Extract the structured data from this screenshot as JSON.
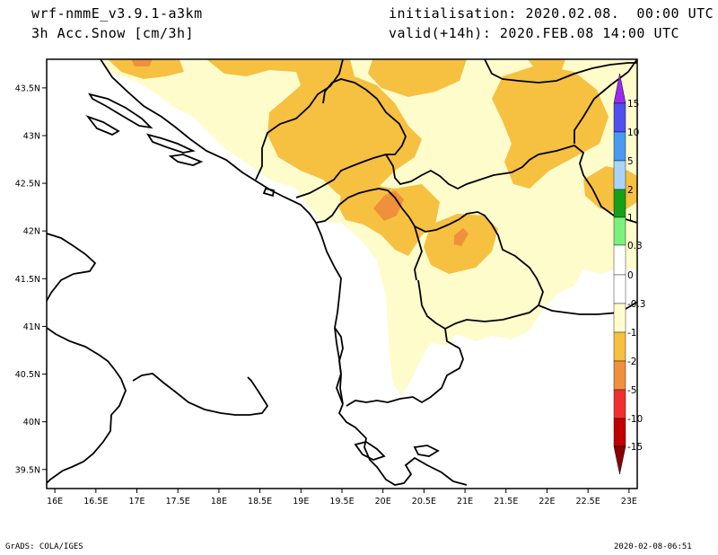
{
  "header": {
    "model": "wrf-nmmE_v3.9.1-a3km",
    "field": "3h Acc.Snow [cm/3h]",
    "init": "initialisation: 2020.02.08.  00:00 UTC",
    "valid": "valid(+14h): 2020.FEB.08 14:00 UTC"
  },
  "footer": {
    "credit": "GrADS: COLA/IGES",
    "timestamp": "2020-02-08-06:51"
  },
  "axes": {
    "x_ticks": [
      "16E",
      "16.5E",
      "17E",
      "17.5E",
      "18E",
      "18.5E",
      "19E",
      "19.5E",
      "20E",
      "20.5E",
      "21E",
      "21.5E",
      "22E",
      "22.5E",
      "23E"
    ],
    "y_ticks": [
      "43.5N",
      "43N",
      "42.5N",
      "42N",
      "41.5N",
      "41N",
      "40.5N",
      "40N",
      "39.5N"
    ],
    "lon_range": [
      15.9,
      23.1
    ],
    "lat_range": [
      39.3,
      43.8
    ]
  },
  "colorbar": {
    "labels": [
      "15",
      "10",
      "5",
      "2",
      "1",
      "0.3",
      "0",
      "-0.3",
      "-1",
      "-2",
      "-5",
      "-10",
      "-15"
    ],
    "colors": {
      "top_arrow": "#9a2bf0",
      "15": "#5050f0",
      "10": "#4a9af0",
      "5": "#a8d4f8",
      "2": "#16a016",
      "1": "#7cf07c",
      "0.3": "#ffffff",
      "0": "#ffffff",
      "-0.3": "#fffdd0",
      "-1": "#f6c040",
      "-2": "#f0903c",
      "-5": "#f03030",
      "-10": "#c00000",
      "bottom_arrow": "#8a0000"
    }
  },
  "snow_colors": {
    "light": "#fffccc",
    "medium": "#f6c040",
    "heavy": "#f0903c"
  }
}
